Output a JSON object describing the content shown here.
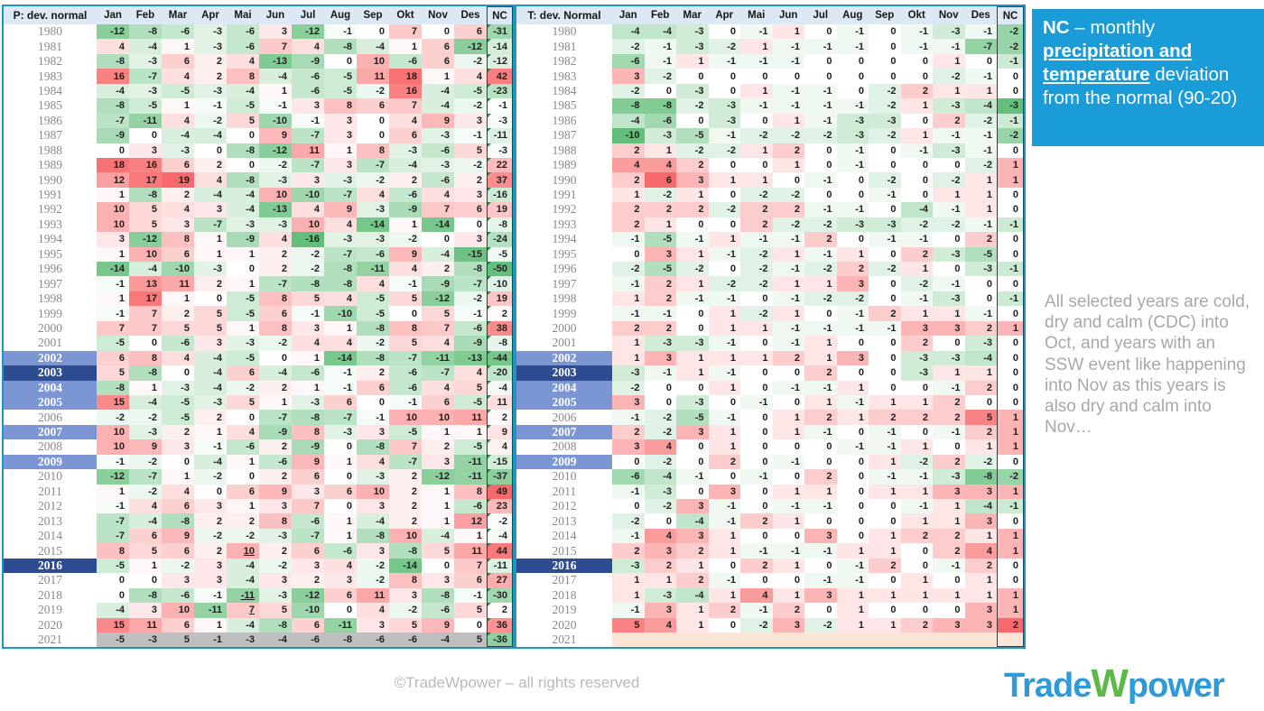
{
  "chart_data": [
    {
      "type": "heatmap",
      "title": "P: dev. normal",
      "months": [
        "Jan",
        "Feb",
        "Mar",
        "Apr",
        "Mai",
        "Jun",
        "Jul",
        "Aug",
        "Sep",
        "Okt",
        "Nov",
        "Des"
      ],
      "nc_label": "NC",
      "years": [
        1980,
        1981,
        1982,
        1983,
        1984,
        1985,
        1986,
        1987,
        1988,
        1989,
        1990,
        1991,
        1992,
        1993,
        1994,
        1995,
        1996,
        1997,
        1998,
        1999,
        2000,
        2001,
        2002,
        2003,
        2004,
        2005,
        2006,
        2007,
        2008,
        2009,
        2010,
        2011,
        2012,
        2013,
        2014,
        2015,
        2016,
        2017,
        2018,
        2019,
        2020,
        2021
      ],
      "rows": [
        [
          -12,
          -8,
          -6,
          -3,
          -6,
          3,
          -12,
          -1,
          0,
          7,
          0,
          6,
          -31
        ],
        [
          4,
          -4,
          1,
          -3,
          -6,
          7,
          4,
          -8,
          -4,
          1,
          6,
          -12,
          -14
        ],
        [
          -8,
          -3,
          6,
          2,
          4,
          -13,
          -9,
          0,
          10,
          -6,
          6,
          -2,
          -12
        ],
        [
          16,
          -7,
          4,
          2,
          8,
          -4,
          -6,
          -5,
          11,
          18,
          1,
          4,
          42
        ],
        [
          -4,
          -3,
          -5,
          -3,
          -4,
          1,
          -6,
          -5,
          -2,
          16,
          -4,
          -5,
          -23
        ],
        [
          -8,
          -5,
          1,
          -1,
          -5,
          -1,
          3,
          8,
          6,
          7,
          -4,
          -2,
          -1
        ],
        [
          -7,
          -11,
          4,
          -2,
          5,
          -10,
          -1,
          3,
          0,
          4,
          9,
          3,
          -3
        ],
        [
          -9,
          0,
          -4,
          -4,
          0,
          9,
          -7,
          3,
          0,
          6,
          -3,
          -1,
          -11
        ],
        [
          0,
          3,
          -3,
          0,
          -8,
          -12,
          11,
          1,
          8,
          -3,
          -6,
          5,
          -3
        ],
        [
          18,
          16,
          6,
          2,
          0,
          -2,
          -7,
          3,
          -7,
          -4,
          -3,
          -2,
          22
        ],
        [
          12,
          17,
          19,
          4,
          -8,
          -3,
          3,
          -3,
          -2,
          2,
          -6,
          2,
          37
        ],
        [
          1,
          -8,
          2,
          -4,
          -4,
          10,
          -10,
          -7,
          4,
          -6,
          4,
          3,
          -16
        ],
        [
          10,
          5,
          4,
          3,
          -4,
          -13,
          4,
          9,
          -3,
          -9,
          7,
          6,
          19
        ],
        [
          10,
          5,
          3,
          -7,
          -3,
          -3,
          10,
          4,
          -14,
          1,
          -14,
          0,
          -8
        ],
        [
          3,
          -12,
          8,
          1,
          -9,
          4,
          -16,
          -3,
          -3,
          -2,
          0,
          3,
          -24
        ],
        [
          1,
          10,
          6,
          1,
          1,
          2,
          -2,
          -7,
          -6,
          9,
          -4,
          -15,
          -5
        ],
        [
          -14,
          -4,
          -10,
          -3,
          0,
          2,
          -2,
          -8,
          -11,
          4,
          2,
          -8,
          -50
        ],
        [
          -1,
          13,
          11,
          2,
          1,
          -7,
          -8,
          -8,
          4,
          -1,
          -9,
          -7,
          -10
        ],
        [
          1,
          17,
          1,
          0,
          -5,
          8,
          5,
          4,
          -5,
          5,
          -12,
          -2,
          19
        ],
        [
          -1,
          7,
          2,
          5,
          -5,
          6,
          -1,
          -10,
          -5,
          0,
          5,
          -1,
          2
        ],
        [
          7,
          7,
          5,
          5,
          1,
          8,
          3,
          1,
          -8,
          8,
          7,
          -6,
          38
        ],
        [
          -5,
          0,
          -6,
          3,
          -3,
          -2,
          4,
          4,
          -2,
          5,
          4,
          -9,
          -8
        ],
        [
          6,
          8,
          4,
          -4,
          -5,
          0,
          1,
          -14,
          -8,
          -7,
          -11,
          -13,
          -44
        ],
        [
          5,
          -8,
          0,
          -4,
          6,
          -4,
          -6,
          -1,
          2,
          -6,
          -7,
          4,
          -20
        ],
        [
          -8,
          1,
          -3,
          -4,
          -2,
          2,
          1,
          -1,
          6,
          -6,
          4,
          5,
          -4
        ],
        [
          15,
          -4,
          -5,
          -3,
          5,
          1,
          -3,
          6,
          0,
          -1,
          6,
          -5,
          11
        ],
        [
          -2,
          -2,
          -5,
          2,
          0,
          -7,
          -8,
          -7,
          -1,
          10,
          10,
          11,
          2
        ],
        [
          10,
          -3,
          2,
          1,
          4,
          -9,
          8,
          -3,
          3,
          -5,
          1,
          1,
          9
        ],
        [
          10,
          9,
          3,
          -1,
          -6,
          2,
          -9,
          0,
          -8,
          7,
          2,
          -5,
          4
        ],
        [
          -1,
          -2,
          0,
          -4,
          1,
          -6,
          9,
          1,
          4,
          -7,
          3,
          -11,
          -15
        ],
        [
          -12,
          -7,
          1,
          -2,
          0,
          2,
          6,
          0,
          -3,
          2,
          -12,
          -11,
          -37
        ],
        [
          1,
          -2,
          4,
          0,
          6,
          9,
          3,
          6,
          10,
          2,
          1,
          8,
          49
        ],
        [
          -1,
          4,
          6,
          3,
          1,
          3,
          7,
          0,
          3,
          2,
          1,
          -6,
          23
        ],
        [
          -7,
          -4,
          -8,
          2,
          2,
          8,
          -6,
          1,
          -4,
          2,
          1,
          12,
          -2
        ],
        [
          -7,
          6,
          9,
          -2,
          -2,
          -3,
          -7,
          1,
          -8,
          10,
          -4,
          1,
          -4
        ],
        [
          8,
          5,
          6,
          2,
          10,
          2,
          6,
          -6,
          3,
          -8,
          5,
          11,
          44
        ],
        [
          -5,
          1,
          -2,
          3,
          -4,
          -2,
          3,
          4,
          -2,
          -14,
          0,
          7,
          -11
        ],
        [
          0,
          0,
          3,
          3,
          -4,
          3,
          2,
          3,
          -2,
          8,
          3,
          6,
          27
        ],
        [
          0,
          -8,
          -6,
          -1,
          -11,
          -3,
          -12,
          6,
          11,
          3,
          -8,
          -1,
          -30
        ],
        [
          -4,
          3,
          10,
          -11,
          7,
          5,
          -10,
          0,
          4,
          -2,
          -6,
          5,
          2
        ],
        [
          15,
          11,
          6,
          1,
          -4,
          -8,
          6,
          -11,
          3,
          5,
          9,
          0,
          36
        ],
        [
          -5,
          -3,
          5,
          -1,
          -3,
          -4,
          -6,
          -8,
          -6,
          -6,
          -4,
          5,
          -36
        ]
      ]
    },
    {
      "type": "heatmap",
      "title": "T: dev. Normal",
      "months": [
        "Jan",
        "Feb",
        "Mar",
        "Apr",
        "Mai",
        "Jun",
        "Jul",
        "Aug",
        "Sep",
        "Okt",
        "Nov",
        "Des"
      ],
      "nc_label": "NC",
      "years": [
        1980,
        1981,
        1982,
        1983,
        1984,
        1985,
        1986,
        1987,
        1988,
        1989,
        1990,
        1991,
        1992,
        1993,
        1994,
        1995,
        1996,
        1997,
        1998,
        1999,
        2000,
        2001,
        2002,
        2003,
        2004,
        2005,
        2006,
        2007,
        2008,
        2009,
        2010,
        2011,
        2012,
        2013,
        2014,
        2015,
        2016,
        2017,
        2018,
        2019,
        2020,
        2021
      ],
      "rows": [
        [
          -4,
          -4,
          -3,
          0,
          -1,
          1,
          0,
          -1,
          0,
          -1,
          -3,
          -1,
          -2
        ],
        [
          -2,
          -1,
          -3,
          -2,
          1,
          -1,
          -1,
          -1,
          0,
          -1,
          -1,
          -7,
          -2
        ],
        [
          -6,
          -1,
          1,
          -1,
          -1,
          -1,
          0,
          0,
          0,
          0,
          1,
          0,
          -1
        ],
        [
          3,
          -2,
          0,
          0,
          0,
          0,
          0,
          0,
          0,
          0,
          -2,
          -1,
          0
        ],
        [
          -2,
          0,
          -3,
          0,
          1,
          -1,
          -1,
          0,
          -2,
          2,
          1,
          1,
          0
        ],
        [
          -8,
          -8,
          -2,
          -3,
          -1,
          -1,
          -1,
          -1,
          -2,
          1,
          -3,
          -4,
          -3
        ],
        [
          -4,
          -6,
          0,
          -3,
          0,
          1,
          -1,
          -3,
          -3,
          0,
          2,
          -2,
          -1
        ],
        [
          -10,
          -3,
          -5,
          -1,
          -2,
          -2,
          -2,
          -3,
          -2,
          1,
          -1,
          -1,
          -2
        ],
        [
          2,
          1,
          -2,
          -2,
          1,
          2,
          0,
          -1,
          0,
          -1,
          -3,
          -1,
          0
        ],
        [
          4,
          4,
          2,
          0,
          0,
          1,
          0,
          -1,
          0,
          0,
          0,
          -2,
          1
        ],
        [
          2,
          6,
          3,
          1,
          1,
          0,
          -1,
          0,
          -2,
          0,
          -2,
          1,
          1
        ],
        [
          1,
          -2,
          1,
          0,
          -2,
          -2,
          0,
          0,
          -1,
          0,
          1,
          1,
          0
        ],
        [
          2,
          2,
          2,
          -2,
          2,
          2,
          -1,
          -1,
          0,
          -4,
          -1,
          1,
          0
        ],
        [
          2,
          1,
          0,
          0,
          2,
          -2,
          -2,
          -3,
          -3,
          -2,
          -2,
          -1,
          -1
        ],
        [
          -1,
          -5,
          -1,
          1,
          -1,
          -1,
          2,
          0,
          -1,
          -1,
          0,
          2,
          0
        ],
        [
          0,
          3,
          1,
          -1,
          -2,
          1,
          -1,
          1,
          0,
          2,
          -3,
          -5,
          0
        ],
        [
          -2,
          -5,
          -2,
          0,
          -2,
          -1,
          -2,
          2,
          -2,
          1,
          0,
          -3,
          -1
        ],
        [
          -1,
          2,
          1,
          -2,
          -2,
          1,
          1,
          3,
          0,
          -2,
          -1,
          0,
          0
        ],
        [
          1,
          2,
          -1,
          -1,
          0,
          -1,
          -2,
          -2,
          0,
          -1,
          -3,
          0,
          -1
        ],
        [
          -1,
          -1,
          0,
          1,
          -2,
          1,
          0,
          -1,
          2,
          1,
          1,
          -1,
          0
        ],
        [
          2,
          2,
          0,
          1,
          1,
          -1,
          -1,
          -1,
          -1,
          3,
          3,
          2,
          1
        ],
        [
          1,
          -3,
          -3,
          -1,
          0,
          -1,
          1,
          0,
          0,
          2,
          0,
          -3,
          0
        ],
        [
          1,
          3,
          1,
          1,
          1,
          2,
          1,
          3,
          0,
          -3,
          -3,
          -4,
          0
        ],
        [
          -3,
          -1,
          1,
          -1,
          0,
          0,
          2,
          0,
          0,
          -3,
          1,
          1,
          0
        ],
        [
          -2,
          0,
          0,
          1,
          0,
          -1,
          -1,
          1,
          0,
          0,
          -1,
          2,
          0
        ],
        [
          3,
          0,
          -3,
          0,
          -1,
          0,
          1,
          -1,
          1,
          1,
          2,
          0,
          0
        ],
        [
          -1,
          -2,
          -5,
          -1,
          0,
          1,
          2,
          1,
          2,
          2,
          2,
          5,
          1
        ],
        [
          2,
          -2,
          3,
          1,
          0,
          1,
          -1,
          0,
          -1,
          0,
          -1,
          2,
          1
        ],
        [
          3,
          4,
          0,
          1,
          0,
          0,
          0,
          -1,
          -1,
          1,
          0,
          1,
          1
        ],
        [
          0,
          -2,
          0,
          2,
          0,
          -1,
          0,
          0,
          1,
          -2,
          2,
          -2,
          0
        ],
        [
          -6,
          -4,
          -1,
          0,
          -1,
          0,
          2,
          0,
          -1,
          -1,
          -3,
          -8,
          -2
        ],
        [
          -1,
          -3,
          0,
          3,
          0,
          1,
          1,
          0,
          1,
          1,
          3,
          3,
          1
        ],
        [
          0,
          -2,
          3,
          -1,
          0,
          -1,
          -1,
          0,
          0,
          -1,
          1,
          -4,
          -1
        ],
        [
          -2,
          0,
          -4,
          -1,
          2,
          1,
          0,
          0,
          0,
          1,
          1,
          3,
          0
        ],
        [
          -1,
          4,
          3,
          1,
          0,
          0,
          3,
          0,
          1,
          2,
          2,
          1,
          1
        ],
        [
          2,
          3,
          2,
          1,
          -1,
          -1,
          -1,
          1,
          1,
          0,
          2,
          4,
          1
        ],
        [
          -3,
          2,
          1,
          0,
          2,
          1,
          0,
          -1,
          2,
          0,
          -1,
          2,
          0
        ],
        [
          1,
          1,
          2,
          -1,
          0,
          0,
          -1,
          -1,
          0,
          1,
          0,
          1,
          0
        ],
        [
          1,
          -3,
          -4,
          1,
          4,
          1,
          3,
          1,
          1,
          1,
          1,
          1,
          1
        ],
        [
          -1,
          3,
          1,
          2,
          -1,
          2,
          0,
          1,
          0,
          0,
          0,
          3,
          1
        ],
        [
          5,
          4,
          1,
          0,
          -2,
          3,
          -2,
          1,
          1,
          2,
          3,
          3,
          2
        ],
        null
      ]
    }
  ],
  "color_scales": [
    {
      "month_min": -16,
      "month_max": 19,
      "nc_min": -50,
      "nc_max": 49
    },
    {
      "month_min": -10,
      "month_max": 6,
      "nc_min": -3,
      "nc_max": 2
    }
  ],
  "highlights": {
    "dark_years": [
      2003,
      2016
    ],
    "medium_years": [
      2002,
      2004,
      2005,
      2007,
      2009
    ]
  },
  "special": {
    "left_gray_year": 2021,
    "right_empty_year": 2021
  },
  "underlined": [
    {
      "table": 0,
      "year": 2015,
      "month": "Mai"
    },
    {
      "table": 0,
      "year": 2018,
      "month": "Mai"
    },
    {
      "table": 0,
      "year": 2019,
      "month": "Mai"
    }
  ],
  "colors": {
    "heat_red": "#F8696B",
    "heat_green": "#63BE7B",
    "gray_row": "#BFBFBF",
    "peach_row": "#FCE4D6",
    "header_bg": "#DCE9F5",
    "table_border": "#1C96C6",
    "highlight_dark": "#2E4C92",
    "highlight_medium": "#7C95D3",
    "sidebar_blue": "#1A9CD8",
    "logo_blue": "#2E9BD8",
    "logo_green": "#5CB947"
  },
  "sidebar": {
    "title_prefix": "NC",
    "title_mid": " – monthly ",
    "title_underlined": "precipitation and temperature",
    "title_suffix": " deviation from the normal (90-20)"
  },
  "note": {
    "text": "All selected years are cold, dry and calm (CDC) into Oct, and years with an SSW event like happening into Nov as this years is also dry and calm into Nov…"
  },
  "footer": {
    "text": "©TradeWpower – all rights reserved"
  },
  "logo": {
    "part1": "Trade",
    "part2": "W",
    "part3": "power"
  }
}
